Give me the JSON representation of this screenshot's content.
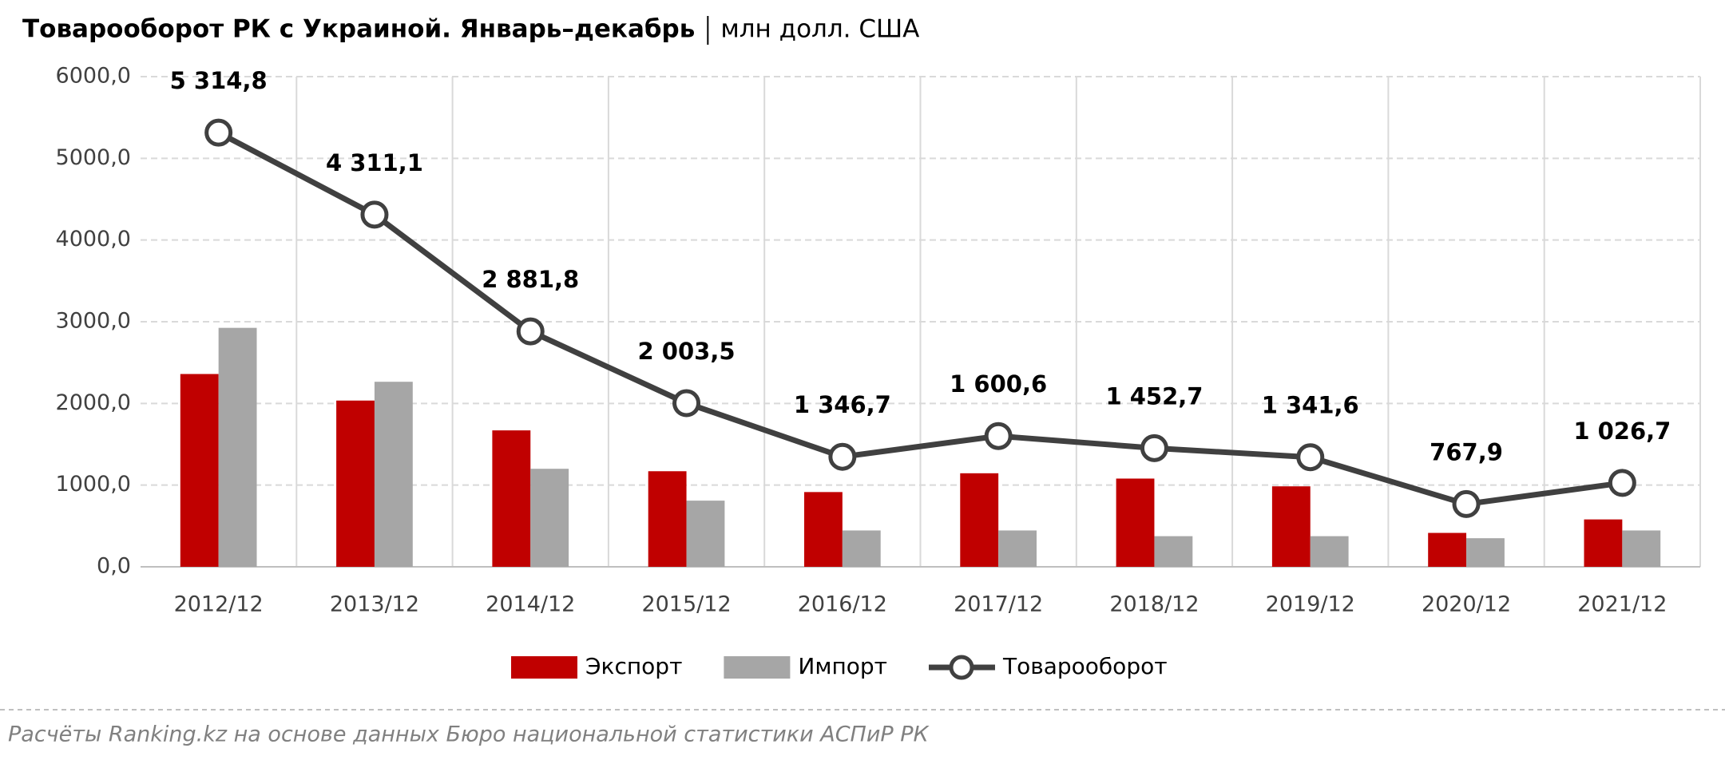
{
  "chart_data": {
    "type": "bar",
    "title": "Товарооборот РК с Украиной. Январь–декабрь",
    "subtitle": "млн долл. США",
    "categories": [
      "2012/12",
      "2013/12",
      "2014/12",
      "2015/12",
      "2016/12",
      "2017/12",
      "2018/12",
      "2019/12",
      "2020/12",
      "2021/12"
    ],
    "series": [
      {
        "name": "Экспорт",
        "type": "bar",
        "color": "#c00000",
        "values": [
          2360,
          2035,
          1670,
          1170,
          915,
          1145,
          1080,
          985,
          415,
          580
        ]
      },
      {
        "name": "Импорт",
        "type": "bar",
        "color": "#a6a6a6",
        "values": [
          2925,
          2265,
          1200,
          810,
          445,
          445,
          375,
          375,
          350,
          445
        ]
      },
      {
        "name": "Товарооборот",
        "type": "line",
        "color": "#404040",
        "values": [
          5314.8,
          4311.1,
          2881.8,
          2003.5,
          1346.7,
          1600.6,
          1452.7,
          1341.6,
          767.9,
          1026.7
        ],
        "value_labels": [
          "5 314,8",
          "4 311,1",
          "2 881,8",
          "2 003,5",
          "1 346,7",
          "1 600,6",
          "1 452,7",
          "1 341,6",
          "767,9",
          "1 026,7"
        ]
      }
    ],
    "ylim": [
      0,
      6000
    ],
    "yticks": [
      {
        "value": 0,
        "label": "0,0"
      },
      {
        "value": 1000,
        "label": "1000,0"
      },
      {
        "value": 2000,
        "label": "2000,0"
      },
      {
        "value": 3000,
        "label": "3000,0"
      },
      {
        "value": 4000,
        "label": "4000,0"
      },
      {
        "value": 5000,
        "label": "5000,0"
      },
      {
        "value": 6000,
        "label": "6000,0"
      }
    ],
    "grid": true,
    "legend": "bottom"
  },
  "source": "Расчёты Ranking.kz на основе данных Бюро национальной статистики АСПиР РК"
}
